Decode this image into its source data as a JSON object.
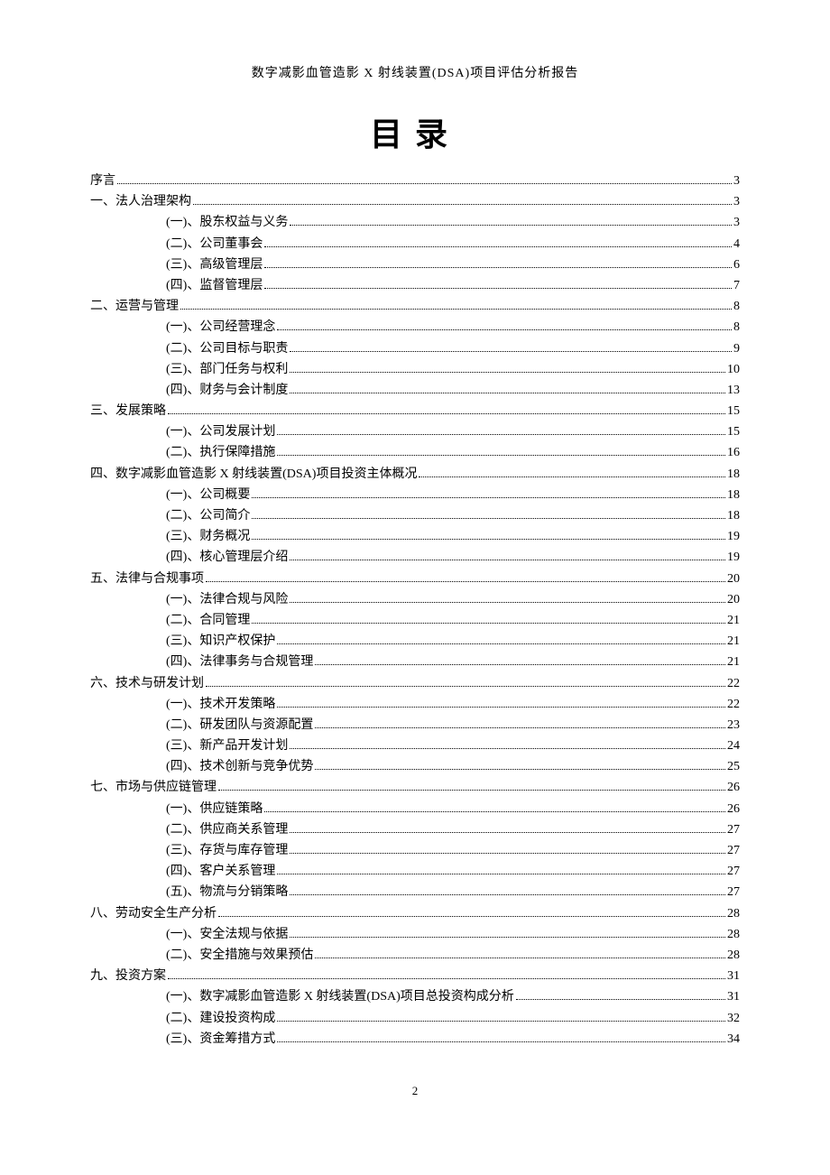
{
  "header_text": "数字减影血管造影 X 射线装置(DSA)项目评估分析报告",
  "toc_title": "目录",
  "page_number": "2",
  "toc": [
    {
      "level": 1,
      "label": "序言",
      "page": "3"
    },
    {
      "level": 1,
      "label": "一、法人治理架构",
      "page": "3"
    },
    {
      "level": 2,
      "label": "(一)、股东权益与义务",
      "page": "3"
    },
    {
      "level": 2,
      "label": "(二)、公司董事会",
      "page": "4"
    },
    {
      "level": 2,
      "label": "(三)、高级管理层",
      "page": "6"
    },
    {
      "level": 2,
      "label": "(四)、监督管理层",
      "page": "7"
    },
    {
      "level": 1,
      "label": "二、运营与管理",
      "page": "8"
    },
    {
      "level": 2,
      "label": "(一)、公司经营理念",
      "page": "8"
    },
    {
      "level": 2,
      "label": "(二)、公司目标与职责",
      "page": "9"
    },
    {
      "level": 2,
      "label": "(三)、部门任务与权利",
      "page": "10"
    },
    {
      "level": 2,
      "label": "(四)、财务与会计制度",
      "page": "13"
    },
    {
      "level": 1,
      "label": "三、发展策略",
      "page": "15"
    },
    {
      "level": 2,
      "label": "(一)、公司发展计划",
      "page": "15"
    },
    {
      "level": 2,
      "label": "(二)、执行保障措施",
      "page": "16"
    },
    {
      "level": 1,
      "label": "四、数字减影血管造影 X 射线装置(DSA)项目投资主体概况",
      "page": "18"
    },
    {
      "level": 2,
      "label": "(一)、公司概要",
      "page": "18"
    },
    {
      "level": 2,
      "label": "(二)、公司简介",
      "page": "18"
    },
    {
      "level": 2,
      "label": "(三)、财务概况",
      "page": "19"
    },
    {
      "level": 2,
      "label": "(四)、核心管理层介绍",
      "page": "19"
    },
    {
      "level": 1,
      "label": "五、法律与合规事项",
      "page": "20"
    },
    {
      "level": 2,
      "label": "(一)、法律合规与风险",
      "page": "20"
    },
    {
      "level": 2,
      "label": "(二)、合同管理",
      "page": "21"
    },
    {
      "level": 2,
      "label": "(三)、知识产权保护",
      "page": "21"
    },
    {
      "level": 2,
      "label": "(四)、法律事务与合规管理",
      "page": "21"
    },
    {
      "level": 1,
      "label": "六、技术与研发计划",
      "page": "22"
    },
    {
      "level": 2,
      "label": "(一)、技术开发策略",
      "page": "22"
    },
    {
      "level": 2,
      "label": "(二)、研发团队与资源配置",
      "page": "23"
    },
    {
      "level": 2,
      "label": "(三)、新产品开发计划",
      "page": "24"
    },
    {
      "level": 2,
      "label": "(四)、技术创新与竞争优势",
      "page": "25"
    },
    {
      "level": 1,
      "label": "七、市场与供应链管理",
      "page": "26"
    },
    {
      "level": 2,
      "label": "(一)、供应链策略",
      "page": "26"
    },
    {
      "level": 2,
      "label": "(二)、供应商关系管理",
      "page": "27"
    },
    {
      "level": 2,
      "label": "(三)、存货与库存管理",
      "page": "27"
    },
    {
      "level": 2,
      "label": "(四)、客户关系管理",
      "page": "27"
    },
    {
      "level": 2,
      "label": "(五)、物流与分销策略",
      "page": "27"
    },
    {
      "level": 1,
      "label": "八、劳动安全生产分析",
      "page": "28"
    },
    {
      "level": 2,
      "label": "(一)、安全法规与依据",
      "page": "28"
    },
    {
      "level": 2,
      "label": "(二)、安全措施与效果预估",
      "page": "28"
    },
    {
      "level": 1,
      "label": "九、投资方案",
      "page": "31"
    },
    {
      "level": 2,
      "label": "(一)、数字减影血管造影 X 射线装置(DSA)项目总投资构成分析",
      "page": "31"
    },
    {
      "level": 2,
      "label": "(二)、建设投资构成",
      "page": "32"
    },
    {
      "level": 2,
      "label": "(三)、资金筹措方式",
      "page": "34"
    }
  ]
}
